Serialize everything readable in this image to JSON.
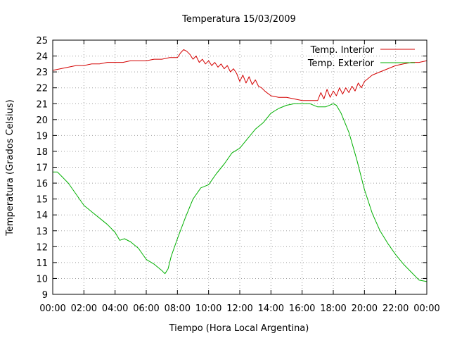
{
  "chart_data": {
    "type": "line",
    "title": "Temperatura 15/03/2009",
    "xlabel": "Tiempo (Hora Local Argentina)",
    "ylabel": "Temperatura (Grados Celsius)",
    "x_unit": "hours",
    "xlim": [
      0,
      24
    ],
    "ylim": [
      9,
      25
    ],
    "grid": true,
    "legend_position": "top-right",
    "x_ticks": [
      {
        "value": 0,
        "label": "00:00"
      },
      {
        "value": 2,
        "label": "02:00"
      },
      {
        "value": 4,
        "label": "04:00"
      },
      {
        "value": 6,
        "label": "06:00"
      },
      {
        "value": 8,
        "label": "08:00"
      },
      {
        "value": 10,
        "label": "10:00"
      },
      {
        "value": 12,
        "label": "12:00"
      },
      {
        "value": 14,
        "label": "14:00"
      },
      {
        "value": 16,
        "label": "16:00"
      },
      {
        "value": 18,
        "label": "18:00"
      },
      {
        "value": 20,
        "label": "20:00"
      },
      {
        "value": 22,
        "label": "22:00"
      },
      {
        "value": 24,
        "label": "00:00"
      }
    ],
    "y_ticks": [
      9,
      10,
      11,
      12,
      13,
      14,
      15,
      16,
      17,
      18,
      19,
      20,
      21,
      22,
      23,
      24,
      25
    ],
    "series": [
      {
        "name": "Temp. Interior",
        "color": "#d40000",
        "x": [
          0,
          0.5,
          1,
          1.5,
          2,
          2.5,
          3,
          3.5,
          4,
          4.5,
          5,
          5.5,
          6,
          6.5,
          7,
          7.5,
          8,
          8.2,
          8.4,
          8.6,
          8.8,
          9,
          9.2,
          9.4,
          9.6,
          9.8,
          10,
          10.2,
          10.4,
          10.6,
          10.8,
          11,
          11.2,
          11.4,
          11.6,
          11.8,
          12,
          12.2,
          12.4,
          12.6,
          12.8,
          13,
          13.2,
          13.4,
          13.6,
          14,
          14.5,
          15,
          15.5,
          16,
          16.5,
          17,
          17.2,
          17.4,
          17.6,
          17.8,
          18,
          18.2,
          18.4,
          18.6,
          18.8,
          19,
          19.2,
          19.4,
          19.6,
          19.8,
          20,
          20.5,
          21,
          21.5,
          22,
          22.5,
          23,
          23.5,
          24
        ],
        "y": [
          23.1,
          23.2,
          23.3,
          23.4,
          23.4,
          23.5,
          23.5,
          23.6,
          23.6,
          23.6,
          23.7,
          23.7,
          23.7,
          23.8,
          23.8,
          23.9,
          23.9,
          24.2,
          24.4,
          24.3,
          24.1,
          23.8,
          24.0,
          23.6,
          23.8,
          23.5,
          23.7,
          23.4,
          23.6,
          23.3,
          23.5,
          23.2,
          23.4,
          23.0,
          23.2,
          22.9,
          22.4,
          22.8,
          22.3,
          22.7,
          22.2,
          22.5,
          22.1,
          22.0,
          21.8,
          21.5,
          21.4,
          21.4,
          21.3,
          21.2,
          21.2,
          21.2,
          21.7,
          21.3,
          21.9,
          21.4,
          21.8,
          21.5,
          22.0,
          21.6,
          22.0,
          21.7,
          22.1,
          21.8,
          22.3,
          22.0,
          22.4,
          22.8,
          23.0,
          23.2,
          23.4,
          23.5,
          23.6,
          23.6,
          23.7
        ]
      },
      {
        "name": "Temp. Exterior",
        "color": "#00b000",
        "x": [
          0,
          0.3,
          0.6,
          1,
          1.5,
          2,
          2.5,
          3,
          3.5,
          4,
          4.3,
          4.6,
          5,
          5.5,
          6,
          6.5,
          7,
          7.2,
          7.4,
          7.6,
          8,
          8.5,
          9,
          9.5,
          10,
          10.5,
          11,
          11.5,
          12,
          12.5,
          13,
          13.5,
          14,
          14.5,
          15,
          15.5,
          16,
          16.5,
          17,
          17.5,
          18,
          18.2,
          18.5,
          19,
          19.5,
          20,
          20.5,
          21,
          21.5,
          22,
          22.5,
          23,
          23.5,
          24
        ],
        "y": [
          16.7,
          16.7,
          16.4,
          16.0,
          15.3,
          14.6,
          14.2,
          13.8,
          13.4,
          12.9,
          12.4,
          12.5,
          12.3,
          11.9,
          11.2,
          10.9,
          10.5,
          10.3,
          10.6,
          11.4,
          12.5,
          13.8,
          15.0,
          15.7,
          15.9,
          16.6,
          17.2,
          17.9,
          18.2,
          18.8,
          19.4,
          19.8,
          20.4,
          20.7,
          20.9,
          21.0,
          21.0,
          21.0,
          20.8,
          20.8,
          21.0,
          20.9,
          20.4,
          19.2,
          17.5,
          15.6,
          14.1,
          13.0,
          12.2,
          11.5,
          10.9,
          10.4,
          9.9,
          9.8
        ]
      }
    ]
  }
}
